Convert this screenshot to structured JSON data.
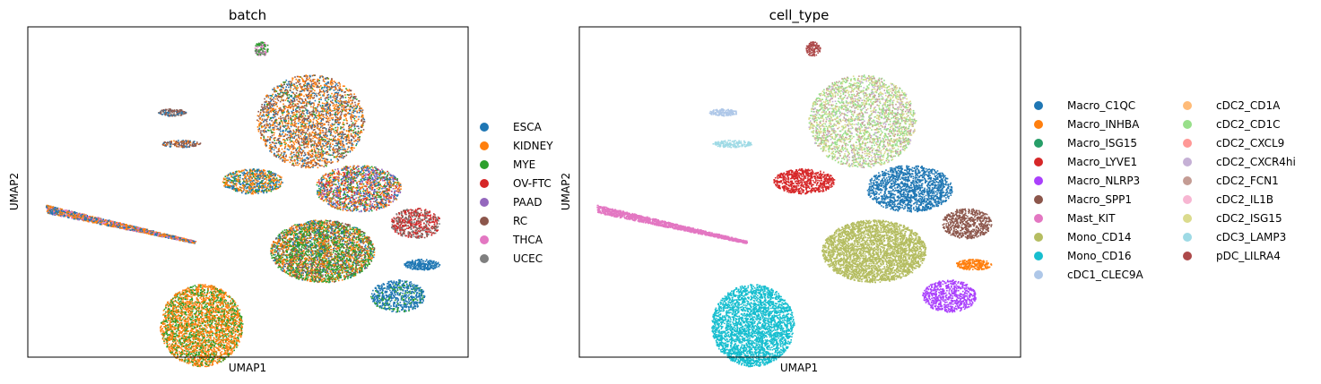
{
  "chart_data": [
    {
      "type": "scatter",
      "title": "batch",
      "xlabel": "UMAP1",
      "ylabel": "UMAP2",
      "legend_position": "right",
      "legend": [
        {
          "name": "ESCA",
          "color": "#1f77b4"
        },
        {
          "name": "KIDNEY",
          "color": "#ff7f0e"
        },
        {
          "name": "MYE",
          "color": "#2ca02c"
        },
        {
          "name": "OV-FTC",
          "color": "#d62728"
        },
        {
          "name": "PAAD",
          "color": "#9467bd"
        },
        {
          "name": "RC",
          "color": "#8c564b"
        },
        {
          "name": "THCA",
          "color": "#e377c2"
        },
        {
          "name": "UCEC",
          "color": "#7f7f7f"
        }
      ]
    },
    {
      "type": "scatter",
      "title": "cell_type",
      "xlabel": "UMAP1",
      "ylabel": "UMAP2",
      "legend_position": "right",
      "legend": [
        {
          "name": "Macro_C1QC",
          "color": "#1f77b4"
        },
        {
          "name": "Macro_INHBA",
          "color": "#ff7f0e"
        },
        {
          "name": "Macro_ISG15",
          "color": "#279e68"
        },
        {
          "name": "Macro_LYVE1",
          "color": "#d62728"
        },
        {
          "name": "Macro_NLRP3",
          "color": "#aa40fc"
        },
        {
          "name": "Macro_SPP1",
          "color": "#8c564b"
        },
        {
          "name": "Mast_KIT",
          "color": "#e377c2"
        },
        {
          "name": "Mono_CD14",
          "color": "#b5bd61"
        },
        {
          "name": "Mono_CD16",
          "color": "#17becf"
        },
        {
          "name": "cDC1_CLEC9A",
          "color": "#aec7e8"
        },
        {
          "name": "cDC2_CD1A",
          "color": "#ffbb78"
        },
        {
          "name": "cDC2_CD1C",
          "color": "#98df8a"
        },
        {
          "name": "cDC2_CXCL9",
          "color": "#ff9896"
        },
        {
          "name": "cDC2_CXCR4hi",
          "color": "#c5b0d5"
        },
        {
          "name": "cDC2_FCN1",
          "color": "#c49c94"
        },
        {
          "name": "cDC2_IL1B",
          "color": "#f7b6d2"
        },
        {
          "name": "cDC2_ISG15",
          "color": "#dbdb8d"
        },
        {
          "name": "cDC3_LAMP3",
          "color": "#9edae5"
        },
        {
          "name": "pDC_LILRA4",
          "color": "#ad494a"
        }
      ]
    }
  ]
}
